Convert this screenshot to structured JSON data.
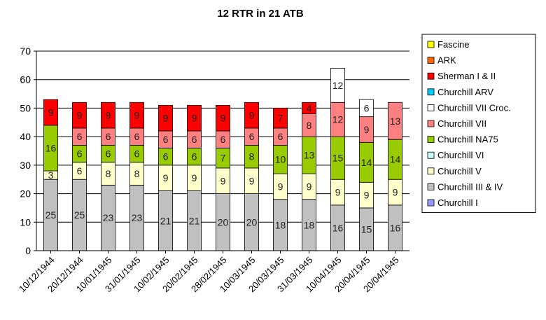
{
  "chart_data": {
    "type": "bar",
    "stacked": true,
    "title": "12 RTR in 21 ATB",
    "xlabel": "",
    "ylabel": "",
    "ylim": [
      0,
      70
    ],
    "yticks": [
      0,
      10,
      20,
      30,
      40,
      50,
      60,
      70
    ],
    "grid": true,
    "legend_position": "right",
    "categories": [
      "10/12/1944",
      "20/12/1944",
      "10/01/1945",
      "31/01/1945",
      "10/02/1945",
      "20/02/1945",
      "28/02/1945",
      "10/03/1945",
      "20/03/1945",
      "31/03/1945",
      "10/04/1945",
      "20/04/1945",
      "20/04/1945"
    ],
    "series": [
      {
        "name": "Churchill I",
        "color": "#9999ff",
        "values": [
          0,
          0,
          0,
          0,
          0,
          0,
          0,
          0,
          0,
          0,
          0,
          0,
          0
        ]
      },
      {
        "name": "Churchill III & IV",
        "color": "#c0c0c0",
        "values": [
          25,
          25,
          23,
          23,
          21,
          21,
          20,
          20,
          18,
          18,
          16,
          15,
          16
        ]
      },
      {
        "name": "Churchill V",
        "color": "#ffffcc",
        "values": [
          3,
          6,
          8,
          8,
          9,
          9,
          9,
          9,
          9,
          9,
          9,
          9,
          9
        ]
      },
      {
        "name": "Churchill VI",
        "color": "#ccffff",
        "values": [
          0,
          0,
          0,
          0,
          0,
          0,
          0,
          0,
          0,
          0,
          0,
          0,
          0
        ]
      },
      {
        "name": "Churchill NA75",
        "color": "#99cc00",
        "values": [
          16,
          6,
          6,
          6,
          6,
          6,
          7,
          8,
          10,
          13,
          15,
          14,
          14
        ]
      },
      {
        "name": "Churchill VII",
        "color": "#ff8080",
        "values": [
          0,
          6,
          6,
          6,
          6,
          6,
          6,
          6,
          6,
          8,
          12,
          9,
          13
        ]
      },
      {
        "name": "Churchill VII Croc.",
        "color": "#ffffff",
        "values": [
          0,
          0,
          0,
          0,
          0,
          0,
          0,
          0,
          0,
          0,
          12,
          6,
          0
        ]
      },
      {
        "name": "Churchill ARV",
        "color": "#00ccff",
        "values": [
          0,
          0,
          0,
          0,
          0,
          0,
          0,
          0,
          0,
          0,
          0,
          0,
          0
        ]
      },
      {
        "name": "Sherman I & II",
        "color": "#ff0000",
        "values": [
          9,
          9,
          9,
          9,
          9,
          9,
          9,
          9,
          7,
          4,
          0,
          0,
          0
        ]
      },
      {
        "name": "ARK",
        "color": "#ff6600",
        "values": [
          0,
          0,
          0,
          0,
          0,
          0,
          0,
          0,
          0,
          0,
          0,
          0,
          0
        ]
      },
      {
        "name": "Fascine",
        "color": "#ffff00",
        "values": [
          0,
          0,
          0,
          0,
          0,
          0,
          0,
          0,
          0,
          0,
          0,
          0,
          0
        ]
      }
    ]
  }
}
